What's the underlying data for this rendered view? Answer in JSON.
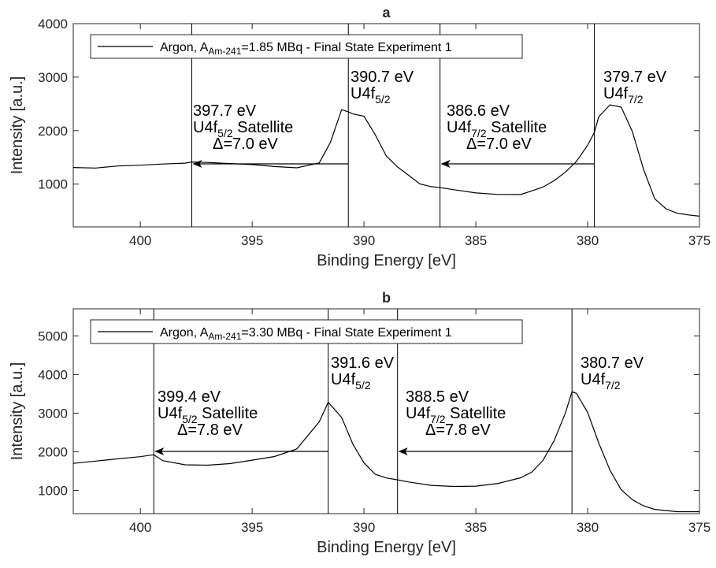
{
  "chart_data": [
    {
      "panel": "a",
      "type": "line",
      "title": "a",
      "xlabel": "Binding Energy [eV]",
      "ylabel": "Intensity [a.u.]",
      "xlim": [
        403,
        375
      ],
      "ylim": [
        200,
        4000
      ],
      "x_reversed": true,
      "xticks": [
        400,
        395,
        390,
        385,
        380,
        375
      ],
      "yticks": [
        1000,
        2000,
        3000,
        4000
      ],
      "legend": {
        "placement": "top-left",
        "pre": "Argon, A",
        "sub": "Am-241",
        "post": "=1.85 MBq - Final State Experiment 1"
      },
      "series": [
        {
          "name": "Argon, AAm-241=1.85 MBq - Final State Experiment 1",
          "x": [
            403,
            402,
            401,
            400,
            399,
            398,
            397.7,
            397,
            396,
            395,
            394,
            393,
            392,
            391.5,
            391,
            390.7,
            390.5,
            390,
            389.5,
            389,
            388.5,
            388,
            387.5,
            387,
            386.6,
            386,
            385,
            384,
            383,
            382.5,
            382,
            381.5,
            381,
            380.5,
            380,
            379.7,
            379.5,
            379,
            378.5,
            378,
            377.5,
            377,
            376.5,
            376,
            375.5,
            375
          ],
          "y": [
            1310,
            1290,
            1320,
            1330,
            1350,
            1370,
            1400,
            1400,
            1390,
            1380,
            1350,
            1330,
            1420,
            1800,
            2400,
            2350,
            2300,
            2250,
            1900,
            1500,
            1300,
            1150,
            1000,
            960,
            950,
            920,
            860,
            830,
            820,
            880,
            940,
            1050,
            1200,
            1400,
            1700,
            1950,
            2250,
            2480,
            2450,
            2000,
            1300,
            750,
            560,
            470,
            430,
            400
          ]
        }
      ],
      "vlines": [
        397.7,
        390.7,
        386.6,
        379.7
      ],
      "arrows": [
        {
          "from": 390.7,
          "to": 397.7,
          "y": 1400
        },
        {
          "from": 379.7,
          "to": 386.6,
          "y": 1400
        }
      ],
      "annotations": [
        {
          "lines": [
            {
              "t": "397.7 eV"
            },
            {
              "t": "U4f",
              "sub": "5/2",
              "post": " Satellite"
            },
            {
              "t": "Δ=7.0 eV",
              "indent": true
            }
          ]
        },
        {
          "lines": [
            {
              "t": "390.7 eV"
            },
            {
              "t": "U4f",
              "sub": "5/2"
            }
          ]
        },
        {
          "lines": [
            {
              "t": "386.6 eV"
            },
            {
              "t": "U4f",
              "sub": "7/2",
              "post": " Satellite"
            },
            {
              "t": "Δ=7.0 eV",
              "indent": true
            }
          ]
        },
        {
          "lines": [
            {
              "t": "379.7 eV"
            },
            {
              "t": "U4f",
              "sub": "7/2"
            }
          ]
        }
      ]
    },
    {
      "panel": "b",
      "type": "line",
      "title": "b",
      "xlabel": "Binding Energy [eV]",
      "ylabel": "Intensity [a.u.]",
      "xlim": [
        403,
        375
      ],
      "ylim": [
        400,
        5700
      ],
      "x_reversed": true,
      "xticks": [
        400,
        395,
        390,
        385,
        380,
        375
      ],
      "yticks": [
        1000,
        2000,
        3000,
        4000,
        5000
      ],
      "legend": {
        "placement": "top-left",
        "pre": "Argon, A",
        "sub": "Am-241",
        "post": "=3.30 MBq - Final State Experiment 1"
      },
      "series": [
        {
          "name": "Argon, AAm-241=3.30 MBq - Final State Experiment 1",
          "x": [
            403,
            402,
            401,
            400,
            399.4,
            399,
            398,
            397,
            396,
            395,
            394,
            393,
            392,
            391.6,
            391,
            390.5,
            390,
            389.5,
            389,
            388.5,
            388,
            387,
            386,
            385,
            384,
            383,
            382.5,
            382,
            381.5,
            381,
            380.7,
            380.5,
            380,
            379.5,
            379,
            378.5,
            378,
            377.5,
            377,
            376,
            375
          ],
          "y": [
            1700,
            1750,
            1800,
            1850,
            1900,
            1750,
            1650,
            1650,
            1700,
            1800,
            1900,
            2100,
            2800,
            3300,
            2900,
            2200,
            1700,
            1400,
            1300,
            1250,
            1200,
            1120,
            1100,
            1120,
            1200,
            1350,
            1500,
            1800,
            2300,
            3000,
            3550,
            3500,
            3000,
            2200,
            1500,
            1000,
            750,
            600,
            520,
            470,
            450
          ]
        }
      ],
      "vlines": [
        399.4,
        391.6,
        388.5,
        380.7
      ],
      "arrows": [
        {
          "from": 391.6,
          "to": 399.4,
          "y": 1950
        },
        {
          "from": 380.7,
          "to": 388.5,
          "y": 1950
        }
      ],
      "annotations": [
        {
          "lines": [
            {
              "t": "399.4 eV"
            },
            {
              "t": "U4f",
              "sub": "5/2",
              "post": " Satellite"
            },
            {
              "t": "Δ=7.8 eV",
              "indent": true
            }
          ]
        },
        {
          "lines": [
            {
              "t": "391.6 eV"
            },
            {
              "t": "U4f",
              "sub": "5/2"
            }
          ]
        },
        {
          "lines": [
            {
              "t": "388.5 eV"
            },
            {
              "t": "U4f",
              "sub": "7/2",
              "post": " Satellite"
            },
            {
              "t": "Δ=7.8 eV",
              "indent": true
            }
          ]
        },
        {
          "lines": [
            {
              "t": "380.7 eV"
            },
            {
              "t": "U4f",
              "sub": "7/2"
            }
          ]
        }
      ]
    }
  ]
}
